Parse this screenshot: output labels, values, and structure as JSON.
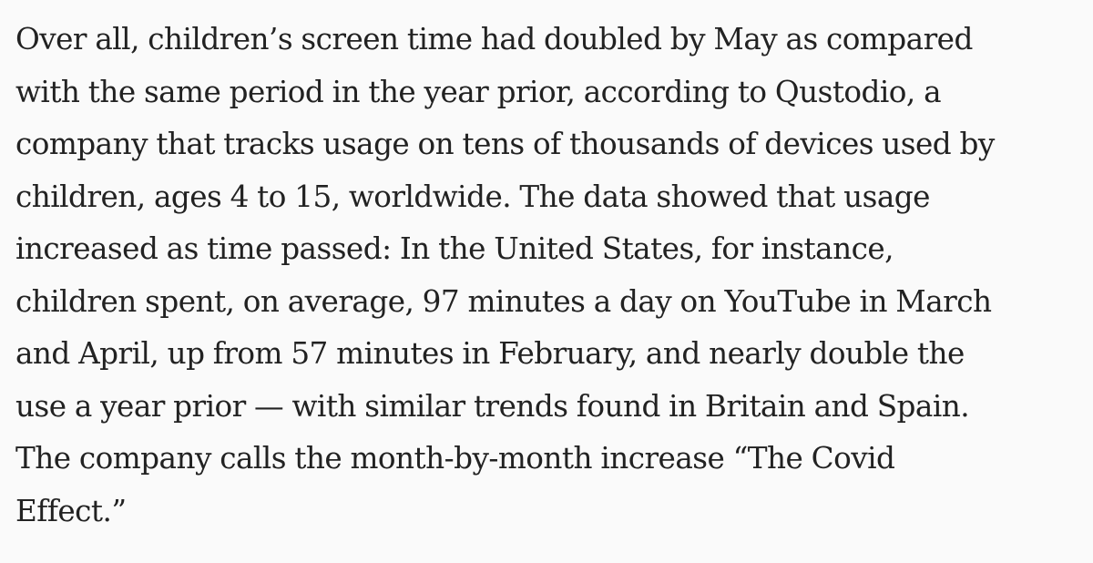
{
  "article": {
    "lines": [
      "Over all, children’s screen time had doubled by May as compared",
      "with the same period in the year prior, according to Qustodio, a",
      "company that tracks usage on tens of thousands of devices used by",
      "children, ages 4 to 15, worldwide. The data showed that usage",
      "increased as time passed: In the United States, for instance,",
      "children spent, on average, 97 minutes a day on YouTube in March",
      "and April, up from 57 minutes in February, and nearly double the",
      "use a year prior — with similar trends found in Britain and Spain.",
      "The company calls the month-by-month increase “The Covid",
      "Effect.”"
    ]
  }
}
